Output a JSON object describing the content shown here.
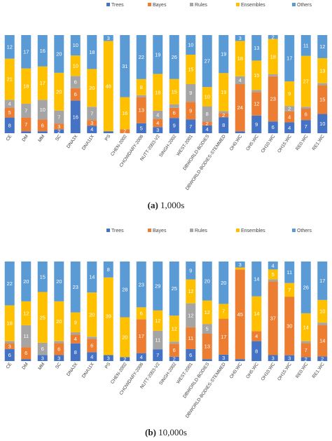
{
  "chart_data": [
    {
      "type": "bar",
      "stacked": true,
      "normalized": true,
      "caption_label": "(a)",
      "caption_text": "1,000s",
      "legend_position": "top-right",
      "categories": [
        "CE",
        "DM",
        "MM",
        "SC",
        "DNA3X",
        "DNA11X",
        "PS",
        "CHEN-2002",
        "CHOWDARY-2006",
        "NUTT-2003-V2",
        "SINGH-2002",
        "WEST-2001",
        "DBWORLD-BODIES",
        "DBWORLD-BODIES-STEMMED",
        "OH0.WC",
        "OH5.WC",
        "OH10.WC",
        "OH15.WC",
        "RE0.WC",
        "RE1.WC"
      ],
      "series": [
        {
          "name": "Trees",
          "color": "#4472C4",
          "values": [
            8,
            1,
            1,
            2,
            16,
            4,
            1,
            0,
            5,
            3,
            9,
            7,
            4,
            8,
            1,
            9,
            6,
            4,
            7,
            10
          ]
        },
        {
          "name": "Bayes",
          "color": "#ED7D31",
          "values": [
            5,
            7,
            6,
            3,
            6,
            3,
            0,
            2,
            13,
            4,
            6,
            9,
            2,
            2,
            24,
            12,
            23,
            4,
            6,
            15
          ]
        },
        {
          "name": "Rules",
          "color": "#A5A5A5",
          "values": [
            4,
            7,
            10,
            7,
            6,
            7,
            0,
            0,
            1,
            4,
            2,
            9,
            8,
            1,
            4,
            1,
            1,
            2,
            1,
            1
          ]
        },
        {
          "name": "Ensembles",
          "color": "#FFC000",
          "values": [
            21,
            18,
            17,
            20,
            10,
            20,
            46,
            16,
            8,
            18,
            15,
            15,
            10,
            19,
            18,
            15,
            18,
            9,
            27,
            13
          ]
        },
        {
          "name": "Others",
          "color": "#5B9BD5",
          "values": [
            12,
            17,
            16,
            20,
            10,
            18,
            3,
            31,
            22,
            19,
            26,
            10,
            27,
            19,
            3,
            13,
            2,
            17,
            11,
            12
          ]
        }
      ]
    },
    {
      "type": "bar",
      "stacked": true,
      "normalized": true,
      "caption_label": "(b)",
      "caption_text": "10,000s",
      "legend_position": "top-right",
      "categories": [
        "CE",
        "DM",
        "MM",
        "SC",
        "DNA3X",
        "DNA11X",
        "PS",
        "CHEN-2002",
        "CHOWDARY-2006",
        "NUTT-2003-V2",
        "SINGH-2002",
        "WEST-2001",
        "DBWORLD-BODIES",
        "DBWORLD-BODIES-STEMMED",
        "OH0.WC",
        "OH5.WC",
        "OH10.WC",
        "OH15.WC",
        "RE0.WC",
        "RE1.WC"
      ],
      "series": [
        {
          "name": "Trees",
          "color": "#4472C4",
          "values": [
            6,
            1,
            3,
            3,
            8,
            4,
            3,
            2,
            4,
            7,
            2,
            6,
            1,
            3,
            1,
            8,
            3,
            3,
            2,
            2
          ]
        },
        {
          "name": "Bayes",
          "color": "#ED7D31",
          "values": [
            3,
            6,
            0,
            6,
            4,
            6,
            0,
            0,
            17,
            0,
            6,
            11,
            13,
            17,
            45,
            4,
            37,
            30,
            7,
            14
          ]
        },
        {
          "name": "Rules",
          "color": "#A5A5A5",
          "values": [
            1,
            11,
            6,
            1,
            1,
            1,
            0,
            0,
            0,
            11,
            1,
            12,
            5,
            0,
            0,
            0,
            1,
            0,
            1,
            1
          ]
        },
        {
          "name": "Ensembles",
          "color": "#FFC000",
          "values": [
            18,
            12,
            25,
            20,
            9,
            20,
            39,
            20,
            6,
            12,
            12,
            12,
            12,
            7,
            1,
            14,
            5,
            7,
            14,
            10
          ]
        },
        {
          "name": "Others",
          "color": "#5B9BD5",
          "values": [
            22,
            20,
            15,
            20,
            23,
            14,
            8,
            28,
            23,
            29,
            25,
            9,
            20,
            20,
            3,
            14,
            4,
            11,
            26,
            17
          ]
        }
      ]
    }
  ]
}
